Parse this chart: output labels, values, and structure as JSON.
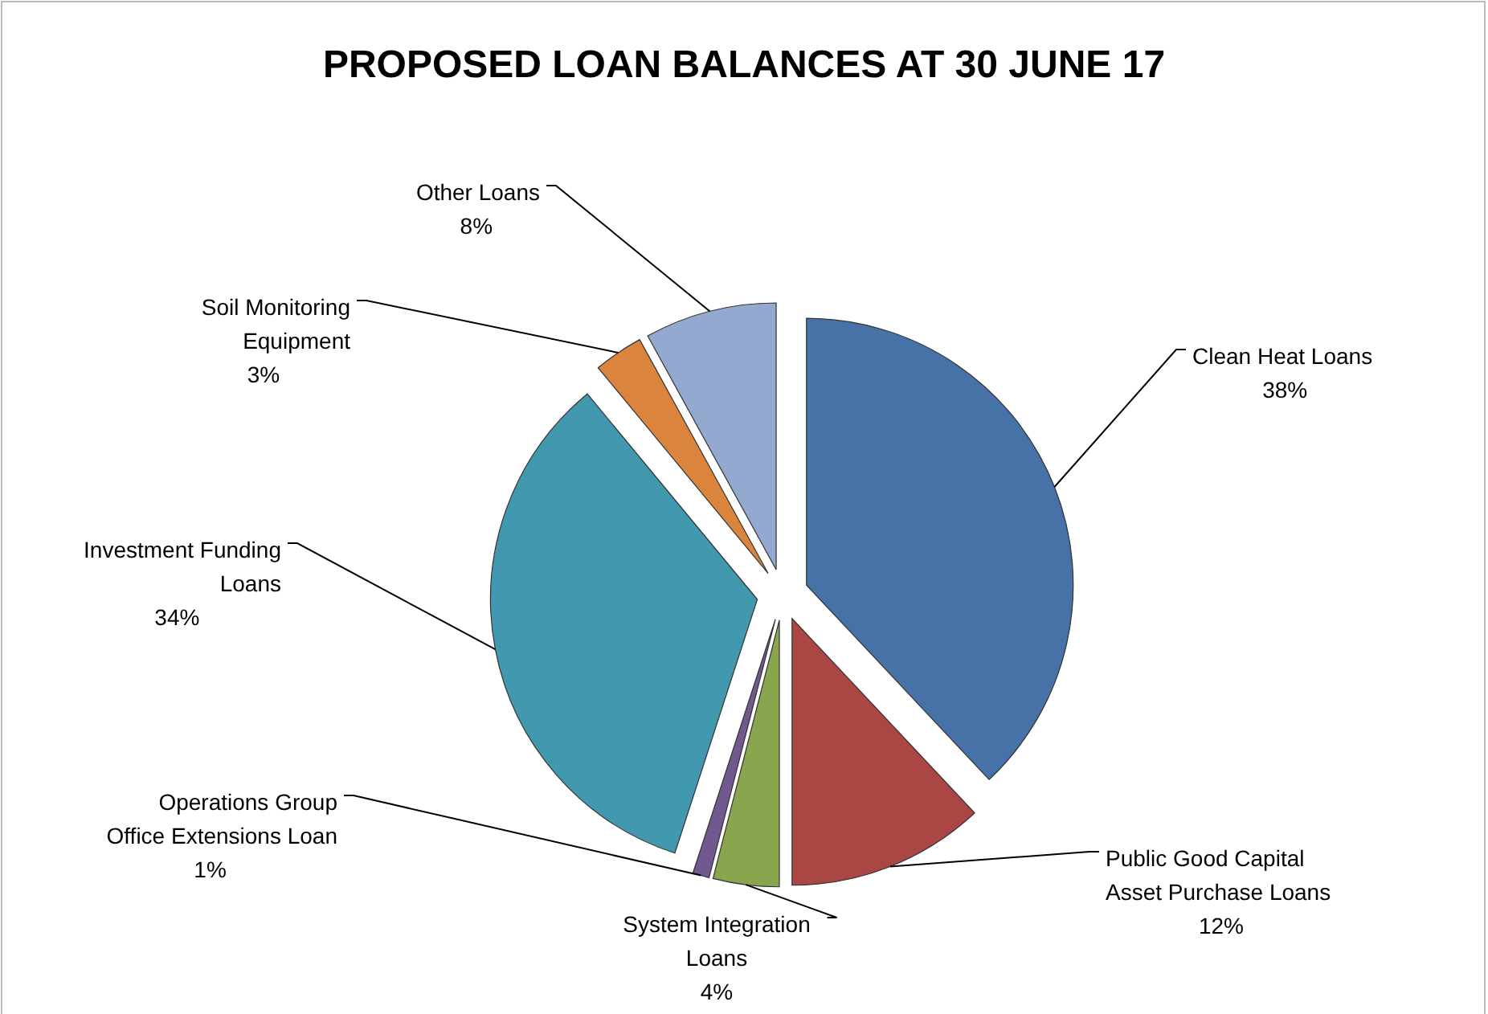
{
  "chart_data": {
    "type": "pie",
    "title": "PROPOSED LOAN BALANCES AT 30 JUNE 17",
    "categories": [
      "Clean Heat Loans",
      "Public Good Capital Asset Purchase Loans",
      "System Integration Loans",
      "Operations Group Office Extensions Loan",
      "Investment Funding Loans",
      "Soil Monitoring Equipment",
      "Other Loans"
    ],
    "values": [
      38,
      12,
      4,
      1,
      34,
      3,
      8
    ],
    "value_labels": [
      "38%",
      "12%",
      "4%",
      "1%",
      "34%",
      "3%",
      "8%"
    ],
    "colors": [
      "#4672a8",
      "#aa4644",
      "#89a54e",
      "#71588f",
      "#4198af",
      "#db843d",
      "#93a9cf"
    ]
  }
}
